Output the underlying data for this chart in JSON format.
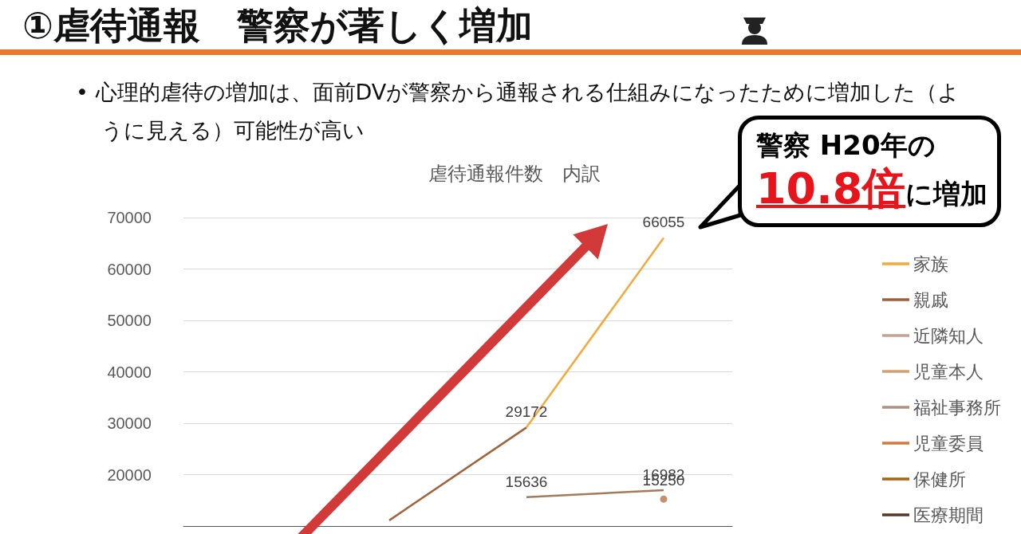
{
  "chart_data": {
    "type": "line",
    "title": "虐待通報件数　内訳",
    "annotations": [
      "①虐待通報　警察が著しく増加",
      "• 心理的虐待の増加は、面前DVが警察から通報される仕組みになったために増加した（ように見える）可能性が高い",
      "警察 H20年の",
      "10.8倍に増加"
    ],
    "categories": [
      null,
      null,
      null,
      null
    ],
    "ylim": [
      10000,
      70000
    ],
    "yticks": [
      {
        "value": 10000,
        "label": null
      },
      20000,
      30000,
      40000,
      50000,
      60000,
      70000
    ],
    "grid": "y",
    "legend": "right",
    "marker": "none",
    "series": [
      {
        "color": "#a0643c",
        "values": [
          null,
          11100,
          29172,
          null
        ]
      },
      {
        "color": "#f4a93a",
        "values": [
          null,
          null,
          29172,
          66055
        ],
        "value_labels": [
          null,
          null,
          "29172",
          "66055"
        ]
      },
      {
        "color": "#a57a5a",
        "values": [
          null,
          null,
          15636,
          16982
        ],
        "value_labels": [
          null,
          null,
          "15636",
          "16982"
        ]
      },
      {
        "color": "#c8906a",
        "marker": "circle",
        "values": [
          null,
          null,
          null,
          15250
        ],
        "value_labels": [
          null,
          null,
          null,
          "15250"
        ]
      },
      {
        "name": "家族",
        "color": "#f4a93a",
        "values": [
          null,
          null,
          null,
          null
        ]
      },
      {
        "name": "親戚",
        "color": "#a0603a",
        "values": [
          null,
          null,
          null,
          null
        ]
      },
      {
        "name": "近隣知人",
        "color": "#c8a090",
        "values": [
          null,
          null,
          null,
          null
        ]
      },
      {
        "name": "児童本人",
        "color": "#d0a070",
        "values": [
          null,
          null,
          null,
          null
        ]
      },
      {
        "name": "福祉事務所",
        "color": "#b09080",
        "values": [
          null,
          null,
          null,
          null
        ]
      },
      {
        "name": "児童委員",
        "color": "#d07a40",
        "values": [
          null,
          null,
          null,
          null
        ]
      },
      {
        "name": "保健所",
        "color": "#a86410",
        "values": [
          null,
          null,
          null,
          null
        ]
      },
      {
        "name": "医療期間",
        "color": "#5a3628",
        "values": [
          null,
          null,
          null,
          null
        ]
      }
    ]
  }
}
